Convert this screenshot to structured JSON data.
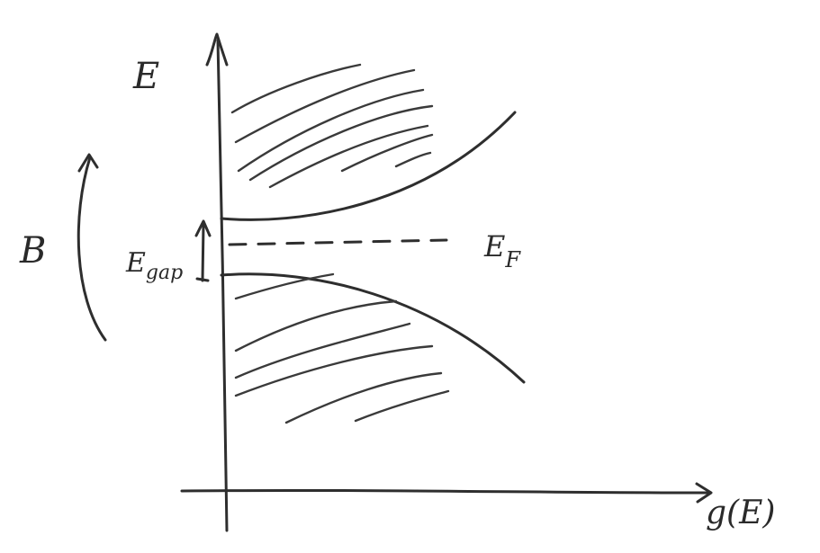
{
  "y_axis_label": "E",
  "x_axis_label": "g(E)",
  "gap_label": {
    "main": "E",
    "sub": "gap"
  },
  "fermi_label": {
    "main": "E",
    "sub": "F"
  },
  "field_label": "B"
}
